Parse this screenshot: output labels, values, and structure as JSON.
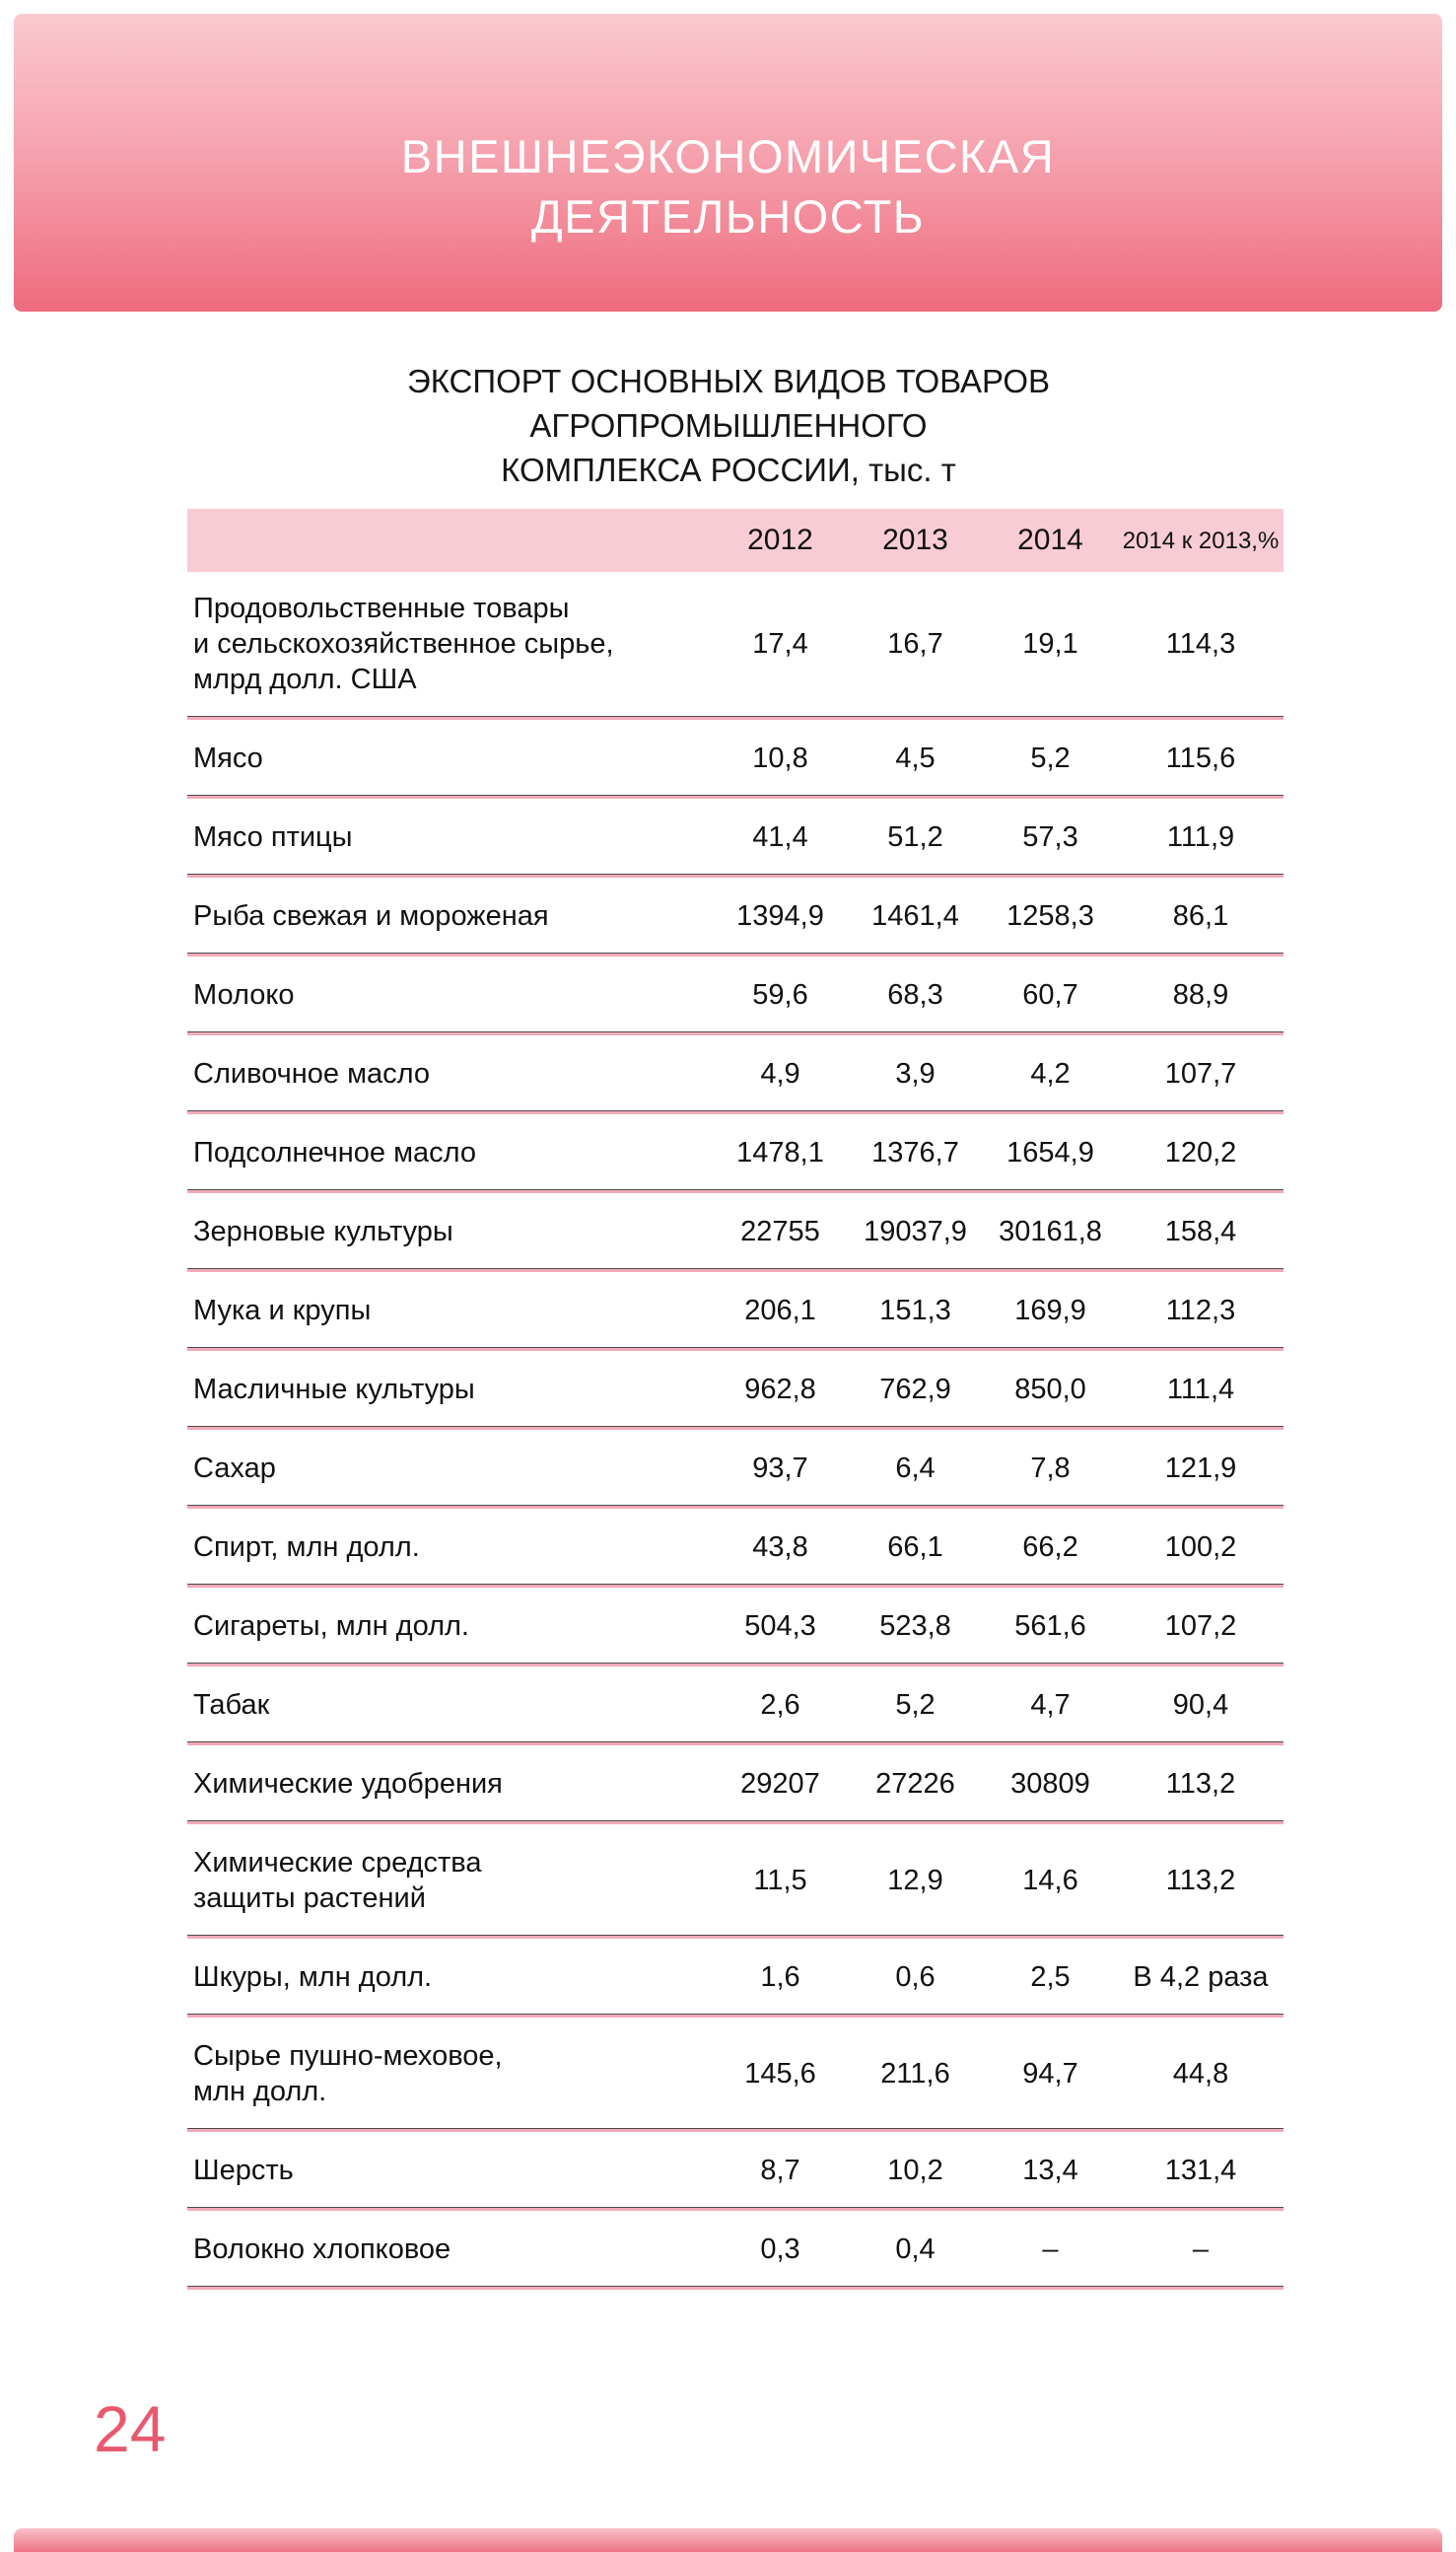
{
  "page_header": {
    "title_lines": [
      "ВНЕШНЕЭКОНОМИЧЕСКАЯ",
      "ДЕЯТЕЛЬНОСТЬ"
    ]
  },
  "table": {
    "title_lines": [
      "ЭКСПОРТ ОСНОВНЫХ ВИДОВ ТОВАРОВ",
      "АГРОПРОМЫШЛЕННОГО",
      "КОМПЛЕКСА РОССИИ, тыс. т"
    ],
    "columns": [
      "2012",
      "2013",
      "2014",
      "2014 к\n2013,%"
    ],
    "rows": [
      {
        "label": "Продовольственные товары\nи сельскохозяйственное сырье,\nмлрд долл. США",
        "values": [
          "17,4",
          "16,7",
          "19,1",
          "114,3"
        ]
      },
      {
        "label": "Мясо",
        "values": [
          "10,8",
          "4,5",
          "5,2",
          "115,6"
        ]
      },
      {
        "label": "Мясо птицы",
        "values": [
          "41,4",
          "51,2",
          "57,3",
          "111,9"
        ]
      },
      {
        "label": "Рыба свежая и мороженая",
        "values": [
          "1394,9",
          "1461,4",
          "1258,3",
          "86,1"
        ]
      },
      {
        "label": "Молоко",
        "values": [
          "59,6",
          "68,3",
          "60,7",
          "88,9"
        ]
      },
      {
        "label": "Сливочное масло",
        "values": [
          "4,9",
          "3,9",
          "4,2",
          "107,7"
        ]
      },
      {
        "label": "Подсолнечное масло",
        "values": [
          "1478,1",
          "1376,7",
          "1654,9",
          "120,2"
        ]
      },
      {
        "label": "Зерновые культуры",
        "values": [
          "22755",
          "19037,9",
          "30161,8",
          "158,4"
        ]
      },
      {
        "label": "Мука и крупы",
        "values": [
          "206,1",
          "151,3",
          "169,9",
          "112,3"
        ]
      },
      {
        "label": "Масличные культуры",
        "values": [
          "962,8",
          "762,9",
          "850,0",
          "111,4"
        ]
      },
      {
        "label": "Сахар",
        "values": [
          "93,7",
          "6,4",
          "7,8",
          "121,9"
        ]
      },
      {
        "label": "Спирт, млн долл.",
        "values": [
          "43,8",
          "66,1",
          "66,2",
          "100,2"
        ]
      },
      {
        "label": "Сигареты, млн долл.",
        "values": [
          "504,3",
          "523,8",
          "561,6",
          "107,2"
        ]
      },
      {
        "label": "Табак",
        "values": [
          "2,6",
          "5,2",
          "4,7",
          "90,4"
        ]
      },
      {
        "label": "Химические удобрения",
        "values": [
          "29207",
          "27226",
          "30809",
          "113,2"
        ]
      },
      {
        "label": "Химические средства\nзащиты растений",
        "values": [
          "11,5",
          "12,9",
          "14,6",
          "113,2"
        ]
      },
      {
        "label": "Шкуры, млн долл.",
        "values": [
          "1,6",
          "0,6",
          "2,5",
          "В 4,2 раза"
        ]
      },
      {
        "label": "Сырье пушно-меховое,\nмлн долл.",
        "values": [
          "145,6",
          "211,6",
          "94,7",
          "44,8"
        ]
      },
      {
        "label": "Шерсть",
        "values": [
          "8,7",
          "10,2",
          "13,4",
          "131,4"
        ]
      },
      {
        "label": "Волокно хлопковое",
        "values": [
          "0,3",
          "0,4",
          "–",
          "–"
        ]
      }
    ]
  },
  "page_number": "24",
  "colors": {
    "header_gradient_top": "#fbc9d0",
    "header_gradient_bottom": "#ee6b7d",
    "table_header_band": "#f8ccd5",
    "separator_dark": "#4c4c4c",
    "separator_pink": "#f2aab9",
    "page_number_pink": "#e8596f",
    "header_text": "#ffffff"
  }
}
